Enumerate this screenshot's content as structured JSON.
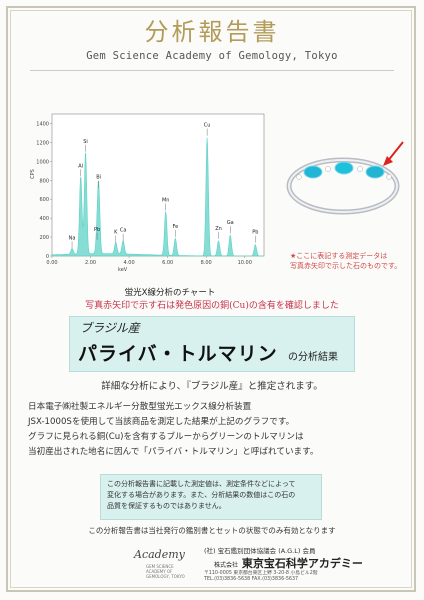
{
  "header": {
    "title": "分析報告書",
    "subtitle": "Gem Science Academy of Gemology, Tokyo"
  },
  "chart_caption": "蛍光X線分析のチャート",
  "chart_data": {
    "type": "line",
    "xlabel": "keV",
    "ylabel": "CPS",
    "xlim": [
      0,
      11
    ],
    "ylim": [
      0,
      1500
    ],
    "x_ticks": [
      "0.00",
      "2.00",
      "4.00",
      "6.00",
      "8.00",
      "10.00"
    ],
    "y_ticks": [
      "0",
      "200",
      "400",
      "600",
      "800",
      "1000",
      "1200",
      "1400"
    ],
    "peaks": [
      {
        "label": "Na",
        "x": 1.04,
        "y": 60
      },
      {
        "label": "Al",
        "x": 1.49,
        "y": 820
      },
      {
        "label": "Si",
        "x": 1.74,
        "y": 1080
      },
      {
        "label": "Bi",
        "x": 2.42,
        "y": 700
      },
      {
        "label": "Pb",
        "x": 2.34,
        "y": 150
      },
      {
        "label": "K",
        "x": 3.31,
        "y": 120
      },
      {
        "label": "Ca",
        "x": 3.69,
        "y": 140
      },
      {
        "label": "Mn",
        "x": 5.9,
        "y": 460
      },
      {
        "label": "Fe",
        "x": 6.4,
        "y": 180
      },
      {
        "label": "Cu",
        "x": 8.05,
        "y": 1250
      },
      {
        "label": "Zn",
        "x": 8.64,
        "y": 160
      },
      {
        "label": "Ga",
        "x": 9.25,
        "y": 220
      },
      {
        "label": "Pb",
        "x": 10.55,
        "y": 120
      }
    ]
  },
  "photo_note": [
    "★ここに表記する測定データは",
    "写真赤矢印で示した石のものです。"
  ],
  "red_statement": "写真赤矢印で示す石は発色原因の銅(Cu)の含有を確認しました",
  "result_box": {
    "origin": "ブラジル産",
    "gem": "パライバ・トルマリン",
    "suffix": "の分析結果"
  },
  "estimate": "詳細な分析により、『ブラジル産』と推定されます。",
  "body_lines": [
    "日本電子㈱社製エネルギー分散型蛍光エックス線分析装置",
    "JSX-1000Sを使用して当該商品を測定した結果が上記のグラフです。",
    "グラフに見られる銅(Cu)を含有するブルーからグリーンのトルマリンは",
    "当初産出された地名に因んで「パライバ・トルマリン」と呼ばれています。"
  ],
  "disclaimer_lines": [
    "この分析報告書に記載した測定値は、測定条件などによって",
    "変化する場合があります。また、分析結果の数値はこの石の",
    "品質を保証するものではありません。"
  ],
  "footnote": "この分析報告書は当社発行の鑑別書とセットの状態でのみ有効となります",
  "footer": {
    "academy": "Academy",
    "academy_small": [
      "GEM SCIENCE",
      "ACADEMY OF",
      "GEMOLOGY, TOKYO"
    ],
    "affiliation": "(社) 宝石鑑別団体協議会 (A.G.L) 会員",
    "company_prefix": "株式会社",
    "company": "東京宝石科学アカデミー",
    "address": [
      "〒110-0005 東京都台東区上野 3-20-8 小島ビル2階",
      "TEL.(03)3836-5638 FAX.(03)3836-5637"
    ]
  },
  "colors": {
    "title": "#b39b5a",
    "spectrum": "#5ed1c6",
    "red": "#c8324a",
    "box": "#d8f0ee"
  }
}
